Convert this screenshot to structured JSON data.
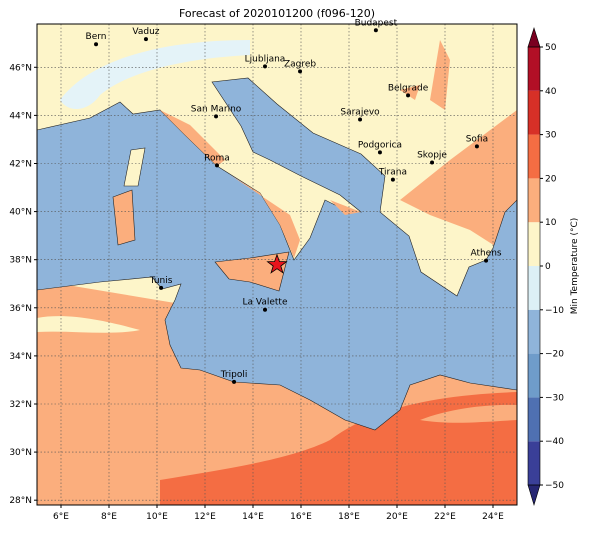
{
  "title": "Forecast of 2020101200 (f096-120)",
  "map": {
    "xlim": [
      5,
      25
    ],
    "ylim": [
      27.8,
      47.8
    ],
    "xticks": [
      {
        "value": 6,
        "label": "6°E"
      },
      {
        "value": 8,
        "label": "8°E"
      },
      {
        "value": 10,
        "label": "10°E"
      },
      {
        "value": 12,
        "label": "12°E"
      },
      {
        "value": 14,
        "label": "14°E"
      },
      {
        "value": 16,
        "label": "16°E"
      },
      {
        "value": 18,
        "label": "18°E"
      },
      {
        "value": 20,
        "label": "20°E"
      },
      {
        "value": 22,
        "label": "22°E"
      },
      {
        "value": 24,
        "label": "24°E"
      }
    ],
    "yticks": [
      {
        "value": 28,
        "label": "28°N"
      },
      {
        "value": 30,
        "label": "30°N"
      },
      {
        "value": 32,
        "label": "32°N"
      },
      {
        "value": 34,
        "label": "34°N"
      },
      {
        "value": 36,
        "label": "36°N"
      },
      {
        "value": 38,
        "label": "38°N"
      },
      {
        "value": 40,
        "label": "40°N"
      },
      {
        "value": 42,
        "label": "42°N"
      },
      {
        "value": 44,
        "label": "44°N"
      },
      {
        "value": 46,
        "label": "46°N"
      }
    ],
    "grid": true,
    "cities": [
      {
        "name": "Bern",
        "lon": 7.46,
        "lat": 46.96
      },
      {
        "name": "Vaduz",
        "lon": 9.54,
        "lat": 47.17
      },
      {
        "name": "Budapest",
        "lon": 19.12,
        "lat": 47.54
      },
      {
        "name": "Ljubljana",
        "lon": 14.5,
        "lat": 46.04
      },
      {
        "name": "Zagreb",
        "lon": 15.96,
        "lat": 45.83
      },
      {
        "name": "Belgrade",
        "lon": 20.46,
        "lat": 44.83
      },
      {
        "name": "San Marino",
        "lon": 12.46,
        "lat": 43.96
      },
      {
        "name": "Sarajevo",
        "lon": 18.46,
        "lat": 43.83
      },
      {
        "name": "Sofia",
        "lon": 23.33,
        "lat": 42.71
      },
      {
        "name": "Podgorica",
        "lon": 19.29,
        "lat": 42.46
      },
      {
        "name": "Skopje",
        "lon": 21.46,
        "lat": 42.04
      },
      {
        "name": "Roma",
        "lon": 12.5,
        "lat": 41.92
      },
      {
        "name": "Tirana",
        "lon": 19.83,
        "lat": 41.33
      },
      {
        "name": "Athens",
        "lon": 23.71,
        "lat": 37.96
      },
      {
        "name": "Tunis",
        "lon": 10.17,
        "lat": 36.83
      },
      {
        "name": "La Valette",
        "lon": 14.5,
        "lat": 35.92
      },
      {
        "name": "Tripoli",
        "lon": 13.21,
        "lat": 32.92
      }
    ],
    "star": {
      "lon": 15,
      "lat": 37.79,
      "color": "#e8141c"
    }
  },
  "colorbar": {
    "label": "Min Temperature (°C)",
    "ticks": [
      {
        "value": -50,
        "label": "−50"
      },
      {
        "value": -40,
        "label": "−40"
      },
      {
        "value": -30,
        "label": "−30"
      },
      {
        "value": -20,
        "label": "−20"
      },
      {
        "value": -10,
        "label": "−10"
      },
      0,
      10,
      20,
      30,
      40,
      50
    ],
    "under_color": "#262673",
    "over_color": "#7a0020",
    "colors": [
      "#3a3f98",
      "#4f70b2",
      "#6f9cca",
      "#8fb4da",
      "#dcf0f6",
      "#fdf5c9",
      "#fbae7d",
      "#f46d43",
      "#d73027",
      "#b20f26"
    ]
  }
}
